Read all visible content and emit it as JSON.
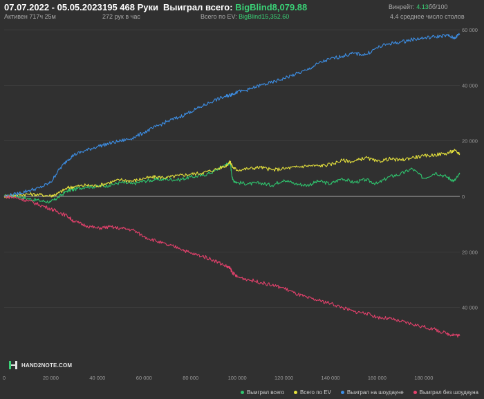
{
  "header": {
    "date_range": "07.07.2022 - 05.05.2023",
    "active_time": "Активен 717ч 25м",
    "hands": "195 468 Руки",
    "hands_per_hour": "272 рук в час",
    "won_total_label": "Выиграл всего:",
    "won_total_value": "BigBlind8,079.88",
    "ev_total_label": "Всего по EV:",
    "ev_total_value": "BigBlind15,352.60",
    "winrate_label": "Винрейт:",
    "winrate_value": "4.13",
    "winrate_unit": "бб/100",
    "avg_tables": "4.4 среднее число столов"
  },
  "logo": {
    "text": "HAND2NOTE.COM"
  },
  "colors": {
    "background": "#303030",
    "green": "#2fc46e",
    "yellow": "#e6e23c",
    "blue": "#3d8fe6",
    "pink": "#e4416c",
    "zero_line": "#cfcfcf",
    "grid": "#444444"
  },
  "chart_data": {
    "type": "line",
    "xlim": [
      0,
      195468
    ],
    "ylim": [
      -62000,
      62000
    ],
    "x_ticks": [
      0,
      20000,
      40000,
      60000,
      80000,
      100000,
      120000,
      140000,
      160000,
      180000
    ],
    "x_tick_labels": [
      "0",
      "20 000",
      "40 000",
      "60 000",
      "80 000",
      "100 000",
      "120 000",
      "140 000",
      "160 000",
      "180 000"
    ],
    "y_ticks": [
      60000,
      40000,
      20000,
      0,
      -20000,
      -40000
    ],
    "y_tick_labels": [
      "60 000",
      "40 000",
      "20 000",
      "0",
      "20 000",
      "40 000"
    ],
    "x": [
      0,
      5000,
      10000,
      15000,
      20000,
      23000,
      27000,
      30000,
      35000,
      40000,
      45000,
      50000,
      55000,
      60000,
      65000,
      70000,
      75000,
      80000,
      85000,
      90000,
      95000,
      97000,
      98000,
      100000,
      105000,
      110000,
      115000,
      120000,
      125000,
      130000,
      135000,
      140000,
      145000,
      150000,
      155000,
      160000,
      165000,
      170000,
      175000,
      180000,
      185000,
      190000,
      193000,
      195468
    ],
    "series": [
      {
        "name": "Выиграл всего",
        "color": "#2fc46e",
        "values": [
          0,
          200,
          -800,
          -1500,
          -2000,
          -500,
          2000,
          2500,
          3500,
          3500,
          4000,
          5000,
          4500,
          5500,
          6000,
          6200,
          6000,
          7000,
          7500,
          9000,
          11500,
          12000,
          6000,
          5000,
          4500,
          4800,
          4000,
          6000,
          4500,
          4000,
          5500,
          4500,
          6500,
          5000,
          6000,
          4500,
          7000,
          8000,
          10000,
          6500,
          8500,
          7000,
          5500,
          8000
        ]
      },
      {
        "name": "Всего по EV",
        "color": "#e6e23c",
        "values": [
          0,
          500,
          800,
          600,
          200,
          1000,
          3000,
          3500,
          4000,
          3800,
          5000,
          6000,
          5500,
          6500,
          7000,
          6800,
          7500,
          8000,
          8500,
          9500,
          11000,
          12500,
          10500,
          9500,
          10000,
          10500,
          9500,
          10000,
          10500,
          11000,
          11000,
          11500,
          13000,
          12500,
          14000,
          12500,
          13500,
          13000,
          14000,
          14500,
          15000,
          15500,
          16500,
          15350
        ]
      },
      {
        "name": "Выиграл на шоудауне",
        "color": "#3d8fe6",
        "values": [
          0,
          800,
          2000,
          3000,
          5000,
          9000,
          13000,
          15000,
          16500,
          18000,
          19000,
          20000,
          21000,
          23000,
          25000,
          27000,
          28500,
          30500,
          32500,
          34500,
          36000,
          36500,
          37000,
          37500,
          38500,
          40000,
          41000,
          42500,
          44000,
          45500,
          48000,
          49500,
          50500,
          51500,
          51000,
          53500,
          55000,
          55500,
          56500,
          57000,
          57500,
          58000,
          57000,
          58500
        ]
      },
      {
        "name": "Выиграл без шоудауна",
        "color": "#e4416c",
        "values": [
          0,
          -500,
          -1500,
          -3000,
          -4500,
          -5500,
          -7000,
          -9000,
          -10500,
          -11500,
          -11000,
          -11500,
          -12000,
          -14500,
          -16000,
          -17500,
          -18500,
          -20500,
          -21500,
          -23000,
          -25000,
          -26000,
          -27500,
          -29000,
          -30000,
          -31000,
          -32000,
          -33000,
          -35000,
          -36500,
          -37500,
          -38500,
          -40000,
          -41500,
          -42000,
          -43500,
          -44000,
          -45000,
          -46000,
          -47000,
          -48000,
          -49500,
          -49800,
          -50200
        ]
      }
    ]
  }
}
